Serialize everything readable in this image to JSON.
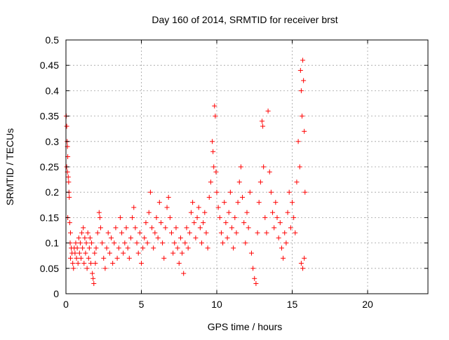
{
  "chart_data": {
    "type": "scatter",
    "title": "Day 160 of 2014, SRMTID for receiver brst",
    "xlabel": "GPS time / hours",
    "ylabel": "SRMTID / TECUs",
    "xlim": [
      0,
      24
    ],
    "ylim": [
      0,
      0.5
    ],
    "xticks": [
      0,
      5,
      10,
      15,
      20
    ],
    "yticks": [
      0,
      0.05,
      0.1,
      0.15,
      0.2,
      0.25,
      0.3,
      0.35,
      0.4,
      0.45,
      0.5
    ],
    "grid": true,
    "marker": "+",
    "color": "#ff0000",
    "series": [
      {
        "values": [
          [
            0.02,
            0.35
          ],
          [
            0.05,
            0.33
          ],
          [
            0.08,
            0.3
          ],
          [
            0.1,
            0.29
          ],
          [
            0.12,
            0.27
          ],
          [
            0.05,
            0.25
          ],
          [
            0.1,
            0.24
          ],
          [
            0.15,
            0.23
          ],
          [
            0.18,
            0.22
          ],
          [
            0.2,
            0.2
          ],
          [
            0.22,
            0.19
          ],
          [
            0.12,
            0.15
          ],
          [
            0.25,
            0.14
          ],
          [
            0.3,
            0.12
          ],
          [
            0.28,
            0.1
          ],
          [
            0.35,
            0.09
          ],
          [
            0.4,
            0.08
          ],
          [
            0.3,
            0.07
          ],
          [
            0.45,
            0.06
          ],
          [
            0.5,
            0.05
          ],
          [
            0.55,
            0.09
          ],
          [
            0.6,
            0.08
          ],
          [
            0.65,
            0.1
          ],
          [
            0.7,
            0.07
          ],
          [
            0.75,
            0.09
          ],
          [
            0.8,
            0.06
          ],
          [
            0.85,
            0.11
          ],
          [
            0.9,
            0.08
          ],
          [
            0.95,
            0.1
          ],
          [
            1.0,
            0.07
          ],
          [
            1.05,
            0.12
          ],
          [
            1.1,
            0.09
          ],
          [
            1.15,
            0.13
          ],
          [
            1.2,
            0.06
          ],
          [
            1.25,
            0.11
          ],
          [
            1.3,
            0.08
          ],
          [
            1.35,
            0.1
          ],
          [
            1.4,
            0.05
          ],
          [
            1.45,
            0.12
          ],
          [
            1.5,
            0.07
          ],
          [
            1.55,
            0.09
          ],
          [
            1.6,
            0.11
          ],
          [
            1.65,
            0.06
          ],
          [
            1.7,
            0.1
          ],
          [
            1.75,
            0.04
          ],
          [
            1.8,
            0.03
          ],
          [
            1.85,
            0.02
          ],
          [
            1.9,
            0.08
          ],
          [
            1.95,
            0.06
          ],
          [
            2.0,
            0.09
          ],
          [
            2.1,
            0.12
          ],
          [
            2.2,
            0.16
          ],
          [
            2.25,
            0.15
          ],
          [
            2.3,
            0.13
          ],
          [
            2.4,
            0.1
          ],
          [
            2.5,
            0.07
          ],
          [
            2.6,
            0.05
          ],
          [
            2.7,
            0.09
          ],
          [
            2.8,
            0.12
          ],
          [
            2.9,
            0.08
          ],
          [
            3.0,
            0.11
          ],
          [
            3.1,
            0.06
          ],
          [
            3.2,
            0.1
          ],
          [
            3.3,
            0.13
          ],
          [
            3.4,
            0.07
          ],
          [
            3.5,
            0.09
          ],
          [
            3.6,
            0.15
          ],
          [
            3.7,
            0.12
          ],
          [
            3.8,
            0.08
          ],
          [
            3.9,
            0.1
          ],
          [
            4.0,
            0.13
          ],
          [
            4.1,
            0.09
          ],
          [
            4.2,
            0.07
          ],
          [
            4.3,
            0.11
          ],
          [
            4.4,
            0.15
          ],
          [
            4.5,
            0.17
          ],
          [
            4.6,
            0.13
          ],
          [
            4.7,
            0.1
          ],
          [
            4.8,
            0.08
          ],
          [
            4.9,
            0.12
          ],
          [
            5.0,
            0.06
          ],
          [
            5.1,
            0.09
          ],
          [
            5.2,
            0.11
          ],
          [
            5.3,
            0.14
          ],
          [
            5.4,
            0.1
          ],
          [
            5.5,
            0.16
          ],
          [
            5.6,
            0.2
          ],
          [
            5.7,
            0.13
          ],
          [
            5.8,
            0.09
          ],
          [
            5.9,
            0.12
          ],
          [
            6.0,
            0.15
          ],
          [
            6.1,
            0.11
          ],
          [
            6.2,
            0.18
          ],
          [
            6.3,
            0.14
          ],
          [
            6.4,
            0.1
          ],
          [
            6.5,
            0.07
          ],
          [
            6.6,
            0.13
          ],
          [
            6.7,
            0.17
          ],
          [
            6.8,
            0.19
          ],
          [
            6.9,
            0.15
          ],
          [
            7.0,
            0.12
          ],
          [
            7.1,
            0.08
          ],
          [
            7.2,
            0.1
          ],
          [
            7.3,
            0.13
          ],
          [
            7.4,
            0.09
          ],
          [
            7.5,
            0.06
          ],
          [
            7.6,
            0.11
          ],
          [
            7.7,
            0.08
          ],
          [
            7.8,
            0.04
          ],
          [
            7.9,
            0.1
          ],
          [
            8.0,
            0.13
          ],
          [
            8.1,
            0.09
          ],
          [
            8.2,
            0.12
          ],
          [
            8.3,
            0.16
          ],
          [
            8.4,
            0.18
          ],
          [
            8.5,
            0.14
          ],
          [
            8.6,
            0.11
          ],
          [
            8.7,
            0.15
          ],
          [
            8.8,
            0.17
          ],
          [
            8.9,
            0.13
          ],
          [
            9.0,
            0.1
          ],
          [
            9.1,
            0.14
          ],
          [
            9.2,
            0.16
          ],
          [
            9.3,
            0.12
          ],
          [
            9.4,
            0.09
          ],
          [
            9.5,
            0.19
          ],
          [
            9.6,
            0.22
          ],
          [
            9.7,
            0.3
          ],
          [
            9.75,
            0.28
          ],
          [
            9.8,
            0.25
          ],
          [
            9.85,
            0.37
          ],
          [
            9.9,
            0.35
          ],
          [
            9.95,
            0.24
          ],
          [
            10.0,
            0.2
          ],
          [
            10.1,
            0.17
          ],
          [
            10.2,
            0.15
          ],
          [
            10.3,
            0.12
          ],
          [
            10.4,
            0.1
          ],
          [
            10.5,
            0.18
          ],
          [
            10.6,
            0.14
          ],
          [
            10.7,
            0.11
          ],
          [
            10.8,
            0.16
          ],
          [
            10.9,
            0.2
          ],
          [
            11.0,
            0.13
          ],
          [
            11.1,
            0.09
          ],
          [
            11.2,
            0.15
          ],
          [
            11.3,
            0.12
          ],
          [
            11.4,
            0.18
          ],
          [
            11.5,
            0.22
          ],
          [
            11.6,
            0.25
          ],
          [
            11.7,
            0.19
          ],
          [
            11.8,
            0.14
          ],
          [
            11.9,
            0.1
          ],
          [
            12.0,
            0.16
          ],
          [
            12.1,
            0.13
          ],
          [
            12.2,
            0.2
          ],
          [
            12.3,
            0.08
          ],
          [
            12.4,
            0.05
          ],
          [
            12.5,
            0.03
          ],
          [
            12.6,
            0.02
          ],
          [
            12.7,
            0.12
          ],
          [
            12.8,
            0.18
          ],
          [
            12.9,
            0.22
          ],
          [
            13.0,
            0.34
          ],
          [
            13.05,
            0.33
          ],
          [
            13.1,
            0.25
          ],
          [
            13.2,
            0.15
          ],
          [
            13.3,
            0.12
          ],
          [
            13.4,
            0.36
          ],
          [
            13.5,
            0.24
          ],
          [
            13.6,
            0.2
          ],
          [
            13.7,
            0.16
          ],
          [
            13.8,
            0.13
          ],
          [
            13.9,
            0.18
          ],
          [
            14.0,
            0.15
          ],
          [
            14.1,
            0.11
          ],
          [
            14.2,
            0.14
          ],
          [
            14.3,
            0.09
          ],
          [
            14.4,
            0.07
          ],
          [
            14.5,
            0.12
          ],
          [
            14.6,
            0.1
          ],
          [
            14.7,
            0.16
          ],
          [
            14.8,
            0.2
          ],
          [
            14.9,
            0.13
          ],
          [
            15.0,
            0.18
          ],
          [
            15.1,
            0.15
          ],
          [
            15.2,
            0.12
          ],
          [
            15.3,
            0.22
          ],
          [
            15.4,
            0.3
          ],
          [
            15.5,
            0.25
          ],
          [
            15.55,
            0.44
          ],
          [
            15.6,
            0.4
          ],
          [
            15.65,
            0.35
          ],
          [
            15.7,
            0.46
          ],
          [
            15.75,
            0.42
          ],
          [
            15.8,
            0.32
          ],
          [
            15.6,
            0.06
          ],
          [
            15.7,
            0.05
          ],
          [
            15.8,
            0.07
          ],
          [
            15.85,
            0.2
          ]
        ]
      }
    ]
  }
}
